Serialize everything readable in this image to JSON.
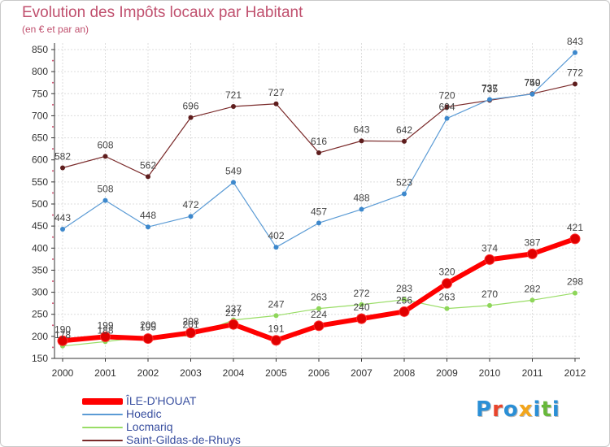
{
  "header": {
    "title": "Evolution des Impôts locaux par Habitant",
    "subtitle": "(en € et par an)"
  },
  "logo": {
    "text": "Proxiti",
    "letters": [
      {
        "ch": "P",
        "color": "#2a8fd6"
      },
      {
        "ch": "r",
        "color": "#e8452c"
      },
      {
        "ch": "o",
        "color": "#2a8fd6"
      },
      {
        "ch": "x",
        "color": "#f2a51b"
      },
      {
        "ch": "i",
        "color": "#2a8fd6"
      },
      {
        "ch": "t",
        "color": "#68b83a"
      },
      {
        "ch": "i",
        "color": "#2a8fd6"
      }
    ]
  },
  "chart_data": {
    "type": "line",
    "title": "Evolution des Impôts locaux par Habitant",
    "subtitle": "(en € et par an)",
    "xlabel": "",
    "ylabel": "",
    "x": [
      2000,
      2001,
      2002,
      2003,
      2004,
      2005,
      2006,
      2007,
      2008,
      2009,
      2010,
      2011,
      2012
    ],
    "ylim": [
      150,
      850
    ],
    "yticks": [
      150,
      200,
      250,
      300,
      350,
      400,
      450,
      500,
      550,
      600,
      650,
      700,
      750,
      800,
      850
    ],
    "grid": true,
    "legend": "bottom-left",
    "series": [
      {
        "name": "ÎLE-D'HOUAT",
        "color": "#ff0000",
        "point_color": "#e00000",
        "width": 6,
        "values": [
          190,
          199,
          195,
          208,
          227,
          191,
          224,
          240,
          256,
          320,
          374,
          387,
          421
        ]
      },
      {
        "name": "Hoedic",
        "color": "#5b9bd5",
        "point_color": "#3d88cc",
        "width": 1.2,
        "values": [
          443,
          508,
          448,
          472,
          549,
          402,
          457,
          488,
          523,
          694,
          737,
          749,
          843
        ]
      },
      {
        "name": "Locmariq",
        "color": "#99dd66",
        "point_color": "#8ed65a",
        "width": 1.2,
        "values": [
          178,
          188,
          200,
          201,
          237,
          247,
          263,
          272,
          283,
          263,
          270,
          282,
          298
        ]
      },
      {
        "name": "Saint-Gildas-de-Rhuys",
        "color": "#7a2a2a",
        "point_color": "#5e1d1d",
        "width": 1.2,
        "values": [
          582,
          608,
          562,
          696,
          721,
          727,
          616,
          643,
          642,
          720,
          735,
          750,
          772
        ]
      }
    ]
  }
}
